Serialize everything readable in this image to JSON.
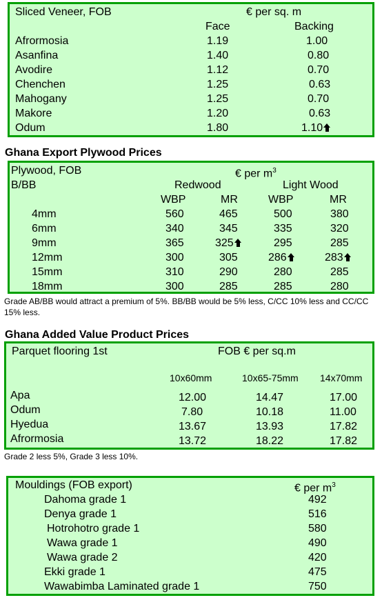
{
  "veneer": {
    "label": "Sliced Veneer, FOB",
    "unit": "€ per sq. m",
    "col_face": "Face",
    "col_backing": "Backing",
    "rows": [
      {
        "name": "Afrormosia",
        "face": "1.19",
        "backing": "1.00"
      },
      {
        "name": "Asanfina",
        "face": "1.40",
        "backing": "0.80"
      },
      {
        "name": "Avodire",
        "face": "1.12",
        "backing": "0.70"
      },
      {
        "name": "Chenchen",
        "face": "1.25",
        "backing": "0.63"
      },
      {
        "name": "Mahogany",
        "face": "1.25",
        "backing": "0.70"
      },
      {
        "name": "Makore",
        "face": "1.20",
        "backing": "0.63"
      },
      {
        "name": "Odum",
        "face": "1.80",
        "backing": "1.10"
      }
    ]
  },
  "plywood": {
    "heading": "Ghana Export Plywood Prices",
    "label": "Plywood, FOB",
    "unit_prefix": "€ per m",
    "unit_sup": "3",
    "grade": "B/BB",
    "group_redwood": "Redwood",
    "group_light": "Light Wood",
    "sub_headers": [
      "WBP",
      "MR",
      "WBP",
      "MR"
    ],
    "rows": [
      {
        "size": "4mm",
        "v": [
          "560",
          "465",
          "500",
          "380"
        ]
      },
      {
        "size": "6mm",
        "v": [
          "340",
          "345",
          "335",
          "320"
        ]
      },
      {
        "size": "9mm",
        "v": [
          "365",
          "325",
          "295",
          "285"
        ]
      },
      {
        "size": "12mm",
        "v": [
          "300",
          "305",
          "286",
          "283"
        ]
      },
      {
        "size": "15mm",
        "v": [
          "310",
          "290",
          "280",
          "285"
        ]
      },
      {
        "size": "18mm",
        "v": [
          "300",
          "285",
          "285",
          "280"
        ]
      }
    ],
    "note": "Grade AB/BB would attract a premium of 5%. BB/BB would be 5% less, C/CC 10% less and CC/CC 15% less."
  },
  "parquet": {
    "heading": "Ghana Added Value Product Prices",
    "label": "Parquet flooring 1st",
    "unit": "FOB € per sq.m",
    "sizes": [
      "10x60mm",
      "10x65-75mm",
      "14x70mm"
    ],
    "rows": [
      {
        "name": "Apa",
        "v": [
          "12.00",
          "14.47",
          "17.00"
        ]
      },
      {
        "name": "Odum",
        "v": [
          "7.80",
          "10.18",
          "11.00"
        ]
      },
      {
        "name": "Hyedua",
        "v": [
          "13.67",
          "13.93",
          "17.82"
        ]
      },
      {
        "name": "Afrormosia",
        "v": [
          "13.72",
          "18.22",
          "17.82"
        ]
      }
    ],
    "note": "Grade 2 less 5%, Grade 3 less 10%."
  },
  "mouldings": {
    "label": "Mouldings (FOB export)",
    "unit_prefix": "€ per m",
    "unit_sup": "3",
    "rows": [
      {
        "name": "Dahoma grade 1",
        "price": "492"
      },
      {
        "name": "Denya grade 1",
        "price": "516"
      },
      {
        "name": "Hotrohotro grade 1",
        "price": "580"
      },
      {
        "name": "Wawa grade 1",
        "price": "490"
      },
      {
        "name": "Wawa grade 2",
        "price": "420"
      },
      {
        "name": "Ekki grade 1",
        "price": "475"
      },
      {
        "name": "Wawabimba Laminated grade 1",
        "price": "750"
      }
    ]
  }
}
